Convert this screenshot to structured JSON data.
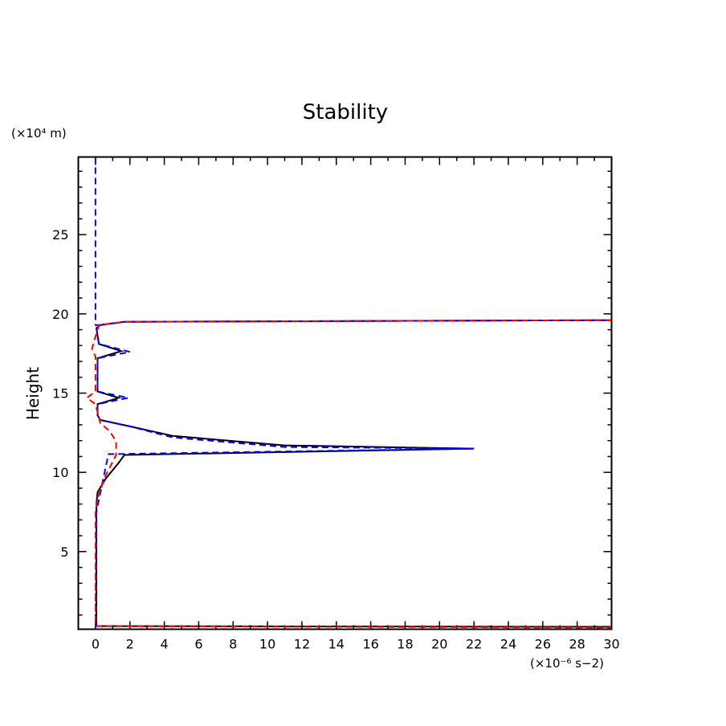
{
  "chart_data": {
    "type": "line",
    "title": "Stability",
    "ylabel": "Height",
    "yunit": "(×10⁴ m)",
    "xunit": "(×10⁻⁶ s−2)",
    "xlim": [
      -1,
      30
    ],
    "ylim": [
      0.1,
      29.9
    ],
    "xticks": [
      0,
      2,
      4,
      6,
      8,
      10,
      12,
      14,
      16,
      18,
      20,
      22,
      24,
      26,
      28,
      30
    ],
    "yticks": [
      5,
      10,
      15,
      20,
      25
    ],
    "grid": false,
    "series": [
      {
        "style": "solid",
        "color": "#000000",
        "points": [
          [
            30,
            0.25
          ],
          [
            0.05,
            0.3
          ],
          [
            0.05,
            8
          ],
          [
            0.12,
            8.75
          ],
          [
            0.59,
            9.6
          ],
          [
            1.35,
            10.6
          ],
          [
            1.68,
            11.1
          ],
          [
            22,
            11.5
          ],
          [
            11,
            11.7
          ],
          [
            4.5,
            12.3
          ],
          [
            2.0,
            12.9
          ],
          [
            0.28,
            13.3
          ],
          [
            0.12,
            13.6
          ],
          [
            0.12,
            14.3
          ],
          [
            1.35,
            14.7
          ],
          [
            0.12,
            15.1
          ],
          [
            0.12,
            17.2
          ],
          [
            1.5,
            17.65
          ],
          [
            0.2,
            18.1
          ],
          [
            0.05,
            19.1
          ],
          [
            0.28,
            19.3
          ],
          [
            1.68,
            19.5
          ],
          [
            30,
            19.6
          ]
        ]
      },
      {
        "style": "dashed",
        "color": "#0000ff",
        "points": [
          [
            0,
            29.9
          ],
          [
            0,
            19.3
          ],
          [
            0.28,
            19.3
          ],
          [
            1.68,
            19.5
          ],
          [
            30,
            19.6
          ],
          [
            1.68,
            19.5
          ],
          [
            0.28,
            19.3
          ],
          [
            0.05,
            19.1
          ],
          [
            0.2,
            18.1
          ],
          [
            2.0,
            17.6
          ],
          [
            0.12,
            17.2
          ],
          [
            0.12,
            15.1
          ],
          [
            1.9,
            14.7
          ],
          [
            0.12,
            14.3
          ],
          [
            0.12,
            13.6
          ],
          [
            0.28,
            13.3
          ],
          [
            2.0,
            12.9
          ],
          [
            4.5,
            12.2
          ],
          [
            11,
            11.6
          ],
          [
            22,
            11.5
          ],
          [
            0.75,
            11.15
          ],
          [
            0.05,
            7.5
          ],
          [
            0,
            0.1
          ]
        ]
      },
      {
        "style": "dashed",
        "color": "#ff0000",
        "points": [
          [
            30,
            19.6
          ],
          [
            1.68,
            19.5
          ],
          [
            0.2,
            19.3
          ],
          [
            -0.05,
            18.4
          ],
          [
            -0.2,
            17.8
          ],
          [
            0,
            17.3
          ],
          [
            0,
            15.1
          ],
          [
            -0.5,
            14.7
          ],
          [
            0,
            14.3
          ],
          [
            0.28,
            13.1
          ],
          [
            0.83,
            12.6
          ],
          [
            1.2,
            11.95
          ],
          [
            1.2,
            11.1
          ],
          [
            0.59,
            9.8
          ],
          [
            0.12,
            8.4
          ],
          [
            0,
            7.5
          ],
          [
            0,
            0.3
          ],
          [
            30,
            0.2
          ]
        ]
      }
    ]
  }
}
